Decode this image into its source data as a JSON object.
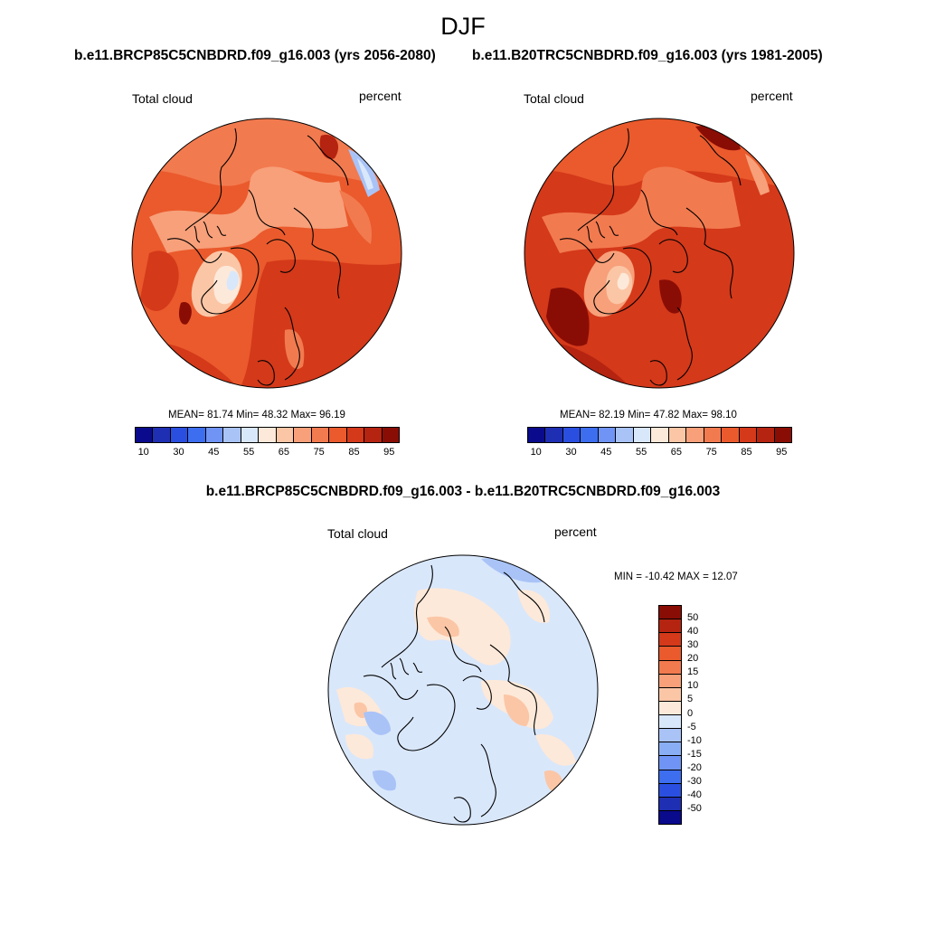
{
  "title": "DJF",
  "panels": [
    {
      "run": "b.e11.BRCP85C5CNBDRD.f09_g16.003 (yrs 2056-2080)",
      "variable": "Total cloud",
      "units": "percent",
      "stats": "MEAN=  81.74  Min=  48.32  Max=  96.19",
      "mean": 81.74,
      "min": 48.32,
      "max": 96.19
    },
    {
      "run": "b.e11.B20TRC5CNBDRD.f09_g16.003 (yrs 1981-2005)",
      "variable": "Total cloud",
      "units": "percent",
      "stats": "MEAN=  82.19  Min=  47.82  Max=  98.10",
      "mean": 82.19,
      "min": 47.82,
      "max": 98.1
    }
  ],
  "abs_colorbar": {
    "colors": [
      "#0a0a8c",
      "#1f2fb3",
      "#2a4fe0",
      "#3d6ef0",
      "#6f94f5",
      "#a9c3f7",
      "#d9e7fb",
      "#fde9d9",
      "#fbc6a6",
      "#f7a07a",
      "#f27a4f",
      "#ea5a2c",
      "#d4391a",
      "#b52410",
      "#8a0d05"
    ],
    "labels": [
      "10",
      "30",
      "45",
      "55",
      "65",
      "75",
      "85",
      "95"
    ]
  },
  "diff": {
    "title": "b.e11.BRCP85C5CNBDRD.f09_g16.003 - b.e11.B20TRC5CNBDRD.f09_g16.003",
    "variable": "Total cloud",
    "units": "percent",
    "stats": "MIN = -10.42 MAX =  12.07",
    "min": -10.42,
    "max": 12.07
  },
  "diff_colorbar": {
    "colors": [
      "#8a0d05",
      "#b52410",
      "#d4391a",
      "#ea5a2c",
      "#f27a4f",
      "#f7a07a",
      "#fbc6a6",
      "#fde9d9",
      "#d9e7fb",
      "#a9c3f7",
      "#8aaef5",
      "#6f94f5",
      "#3d6ef0",
      "#2a4fe0",
      "#1f2fb3",
      "#0a0a8c"
    ],
    "labels": [
      "50",
      "40",
      "30",
      "20",
      "15",
      "10",
      "5",
      "0",
      "-5",
      "-10",
      "-15",
      "-20",
      "-30",
      "-40",
      "-50"
    ]
  }
}
